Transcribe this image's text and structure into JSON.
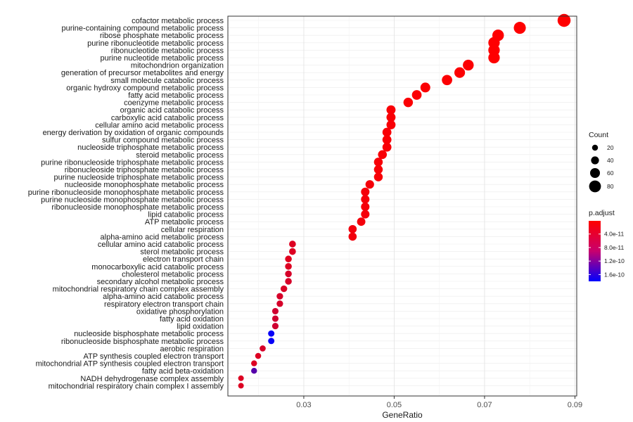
{
  "chart_data": {
    "type": "scatter",
    "xlabel": "GeneRatio",
    "ylabel": "",
    "xlim": [
      0.0132,
      0.0904
    ],
    "xticks": [
      0.03,
      0.05,
      0.07,
      0.09
    ],
    "xtick_labels": [
      "0.03",
      "0.05",
      "0.07",
      "0.09"
    ],
    "grid": true,
    "legend_position": "right",
    "size_legend": {
      "title": "Count",
      "values": [
        20,
        40,
        60,
        80
      ],
      "labels": [
        "20",
        "40",
        "60",
        "80"
      ]
    },
    "color_legend": {
      "title": "p.adjust",
      "low_color": "#ff0000",
      "high_color": "#0000ff",
      "range": [
        1e-12,
        1.8e-10
      ],
      "ticks": [
        4e-11,
        8e-11,
        1.2e-10,
        1.6e-10
      ],
      "labels": [
        "4.0e-11",
        "8.0e-11",
        "1.2e-10",
        "1.6e-10"
      ]
    },
    "points": [
      {
        "term": "cofactor metabolic process",
        "gene_ratio": 0.0876,
        "count": 92,
        "p_adjust": 1e-12
      },
      {
        "term": "purine-containing compound metabolic process",
        "gene_ratio": 0.0778,
        "count": 82,
        "p_adjust": 2e-12
      },
      {
        "term": "ribose phosphate metabolic process",
        "gene_ratio": 0.073,
        "count": 77,
        "p_adjust": 2e-12
      },
      {
        "term": "purine ribonucleotide metabolic process",
        "gene_ratio": 0.0721,
        "count": 76,
        "p_adjust": 2e-12
      },
      {
        "term": "ribonucleotide metabolic process",
        "gene_ratio": 0.0721,
        "count": 76,
        "p_adjust": 2e-12
      },
      {
        "term": "purine nucleotide metabolic process",
        "gene_ratio": 0.0721,
        "count": 76,
        "p_adjust": 2e-12
      },
      {
        "term": "mitochondrion organization",
        "gene_ratio": 0.0664,
        "count": 70,
        "p_adjust": 3e-12
      },
      {
        "term": "generation of precursor metabolites and energy",
        "gene_ratio": 0.0645,
        "count": 68,
        "p_adjust": 3e-12
      },
      {
        "term": "small molecule catabolic process",
        "gene_ratio": 0.0617,
        "count": 65,
        "p_adjust": 3e-12
      },
      {
        "term": "organic hydroxy compound metabolic process",
        "gene_ratio": 0.0569,
        "count": 60,
        "p_adjust": 4e-12
      },
      {
        "term": "fatty acid metabolic process",
        "gene_ratio": 0.055,
        "count": 58,
        "p_adjust": 4e-12
      },
      {
        "term": "coenzyme metabolic process",
        "gene_ratio": 0.0531,
        "count": 56,
        "p_adjust": 4e-12
      },
      {
        "term": "organic acid catabolic process",
        "gene_ratio": 0.0493,
        "count": 52,
        "p_adjust": 5e-12
      },
      {
        "term": "carboxylic acid catabolic process",
        "gene_ratio": 0.0493,
        "count": 52,
        "p_adjust": 5e-12
      },
      {
        "term": "cellular amino acid metabolic process",
        "gene_ratio": 0.0493,
        "count": 52,
        "p_adjust": 5e-12
      },
      {
        "term": "energy derivation by oxidation of organic compounds",
        "gene_ratio": 0.0484,
        "count": 51,
        "p_adjust": 5e-12
      },
      {
        "term": "sulfur compound metabolic process",
        "gene_ratio": 0.0484,
        "count": 51,
        "p_adjust": 5e-12
      },
      {
        "term": "nucleoside triphosphate metabolic process",
        "gene_ratio": 0.0484,
        "count": 51,
        "p_adjust": 5e-12
      },
      {
        "term": "steroid metabolic process",
        "gene_ratio": 0.0474,
        "count": 50,
        "p_adjust": 6e-12
      },
      {
        "term": "purine ribonucleoside triphosphate metabolic process",
        "gene_ratio": 0.0465,
        "count": 49,
        "p_adjust": 6e-12
      },
      {
        "term": "ribonucleoside triphosphate metabolic process",
        "gene_ratio": 0.0465,
        "count": 49,
        "p_adjust": 6e-12
      },
      {
        "term": "purine nucleoside triphosphate metabolic process",
        "gene_ratio": 0.0465,
        "count": 49,
        "p_adjust": 6e-12
      },
      {
        "term": "nucleoside monophosphate metabolic process",
        "gene_ratio": 0.0446,
        "count": 47,
        "p_adjust": 8e-12
      },
      {
        "term": "purine ribonucleoside monophosphate metabolic process",
        "gene_ratio": 0.0436,
        "count": 46,
        "p_adjust": 8e-12
      },
      {
        "term": "purine nucleoside monophosphate metabolic process",
        "gene_ratio": 0.0436,
        "count": 46,
        "p_adjust": 8e-12
      },
      {
        "term": "ribonucleoside monophosphate metabolic process",
        "gene_ratio": 0.0436,
        "count": 46,
        "p_adjust": 8e-12
      },
      {
        "term": "lipid catabolic process",
        "gene_ratio": 0.0436,
        "count": 46,
        "p_adjust": 8e-12
      },
      {
        "term": "ATP metabolic process",
        "gene_ratio": 0.0427,
        "count": 45,
        "p_adjust": 9e-12
      },
      {
        "term": "cellular respiration",
        "gene_ratio": 0.0408,
        "count": 43,
        "p_adjust": 1e-11
      },
      {
        "term": "alpha-amino acid metabolic process",
        "gene_ratio": 0.0408,
        "count": 43,
        "p_adjust": 1e-11
      },
      {
        "term": "cellular amino acid catabolic process",
        "gene_ratio": 0.0275,
        "count": 29,
        "p_adjust": 2.5e-11
      },
      {
        "term": "sterol metabolic process",
        "gene_ratio": 0.0275,
        "count": 29,
        "p_adjust": 2.5e-11
      },
      {
        "term": "electron transport chain",
        "gene_ratio": 0.0266,
        "count": 28,
        "p_adjust": 2.2e-11
      },
      {
        "term": "monocarboxylic acid catabolic process",
        "gene_ratio": 0.0266,
        "count": 28,
        "p_adjust": 2.5e-11
      },
      {
        "term": "cholesterol metabolic process",
        "gene_ratio": 0.0266,
        "count": 28,
        "p_adjust": 3e-11
      },
      {
        "term": "secondary alcohol metabolic process",
        "gene_ratio": 0.0266,
        "count": 28,
        "p_adjust": 3e-11
      },
      {
        "term": "mitochondrial respiratory chain complex assembly",
        "gene_ratio": 0.0256,
        "count": 27,
        "p_adjust": 2.8e-11
      },
      {
        "term": "alpha-amino acid catabolic process",
        "gene_ratio": 0.0247,
        "count": 26,
        "p_adjust": 3e-11
      },
      {
        "term": "respiratory electron transport chain",
        "gene_ratio": 0.0247,
        "count": 26,
        "p_adjust": 3e-11
      },
      {
        "term": "oxidative phosphorylation",
        "gene_ratio": 0.0237,
        "count": 25,
        "p_adjust": 3.5e-11
      },
      {
        "term": "fatty acid oxidation",
        "gene_ratio": 0.0237,
        "count": 25,
        "p_adjust": 3.5e-11
      },
      {
        "term": "lipid oxidation",
        "gene_ratio": 0.0237,
        "count": 25,
        "p_adjust": 3.5e-11
      },
      {
        "term": "nucleoside bisphosphate metabolic process",
        "gene_ratio": 0.0228,
        "count": 24,
        "p_adjust": 1.75e-10
      },
      {
        "term": "ribonucleoside bisphosphate metabolic process",
        "gene_ratio": 0.0228,
        "count": 24,
        "p_adjust": 1.75e-10
      },
      {
        "term": "aerobic respiration",
        "gene_ratio": 0.0209,
        "count": 22,
        "p_adjust": 3e-11
      },
      {
        "term": "ATP synthesis coupled electron transport",
        "gene_ratio": 0.0199,
        "count": 21,
        "p_adjust": 2.5e-11
      },
      {
        "term": "mitochondrial ATP synthesis coupled electron transport",
        "gene_ratio": 0.019,
        "count": 20,
        "p_adjust": 2.5e-11
      },
      {
        "term": "fatty acid beta-oxidation",
        "gene_ratio": 0.019,
        "count": 20,
        "p_adjust": 1.2e-10
      },
      {
        "term": "NADH dehydrogenase complex assembly",
        "gene_ratio": 0.0161,
        "count": 17,
        "p_adjust": 2.5e-11
      },
      {
        "term": "mitochondrial respiratory chain complex I assembly",
        "gene_ratio": 0.0161,
        "count": 17,
        "p_adjust": 2.5e-11
      }
    ]
  }
}
